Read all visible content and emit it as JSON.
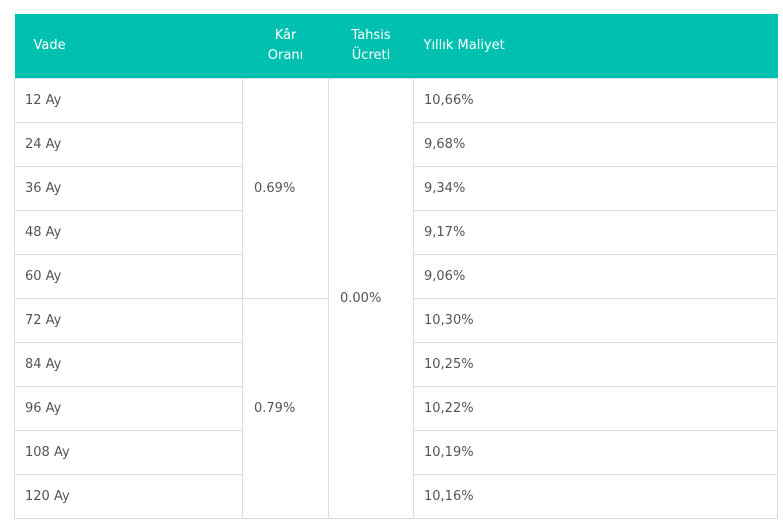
{
  "headers": {
    "term": "Vade",
    "profit_rate": [
      "Kâr",
      "Oranı"
    ],
    "allocation_fee": [
      "Tahsis",
      "Ücreti"
    ],
    "annual_cost": "Yıllık Maliyet"
  },
  "rows": [
    {
      "term": "12 Ay",
      "annual_cost": "10,66%"
    },
    {
      "term": "24 Ay",
      "annual_cost": "9,68%"
    },
    {
      "term": "36 Ay",
      "annual_cost": "9,34%"
    },
    {
      "term": "48 Ay",
      "annual_cost": "9,17%"
    },
    {
      "term": "60 Ay",
      "annual_cost": "9,06%"
    },
    {
      "term": "72 Ay",
      "annual_cost": "10,30%"
    },
    {
      "term": "84 Ay",
      "annual_cost": "10,25%"
    },
    {
      "term": "96 Ay",
      "annual_cost": "10,22%"
    },
    {
      "term": "108 Ay",
      "annual_cost": "10,19%"
    },
    {
      "term": "120 Ay",
      "annual_cost": "10,16%"
    }
  ],
  "profit_rate_groups": [
    "0.69%",
    "0.79%"
  ],
  "allocation_fee_value": "0.00%",
  "colors": {
    "header_bg": "#00c1b0",
    "header_text": "#ffffff",
    "border": "#dcdcdc",
    "cell_text": "#555555"
  }
}
